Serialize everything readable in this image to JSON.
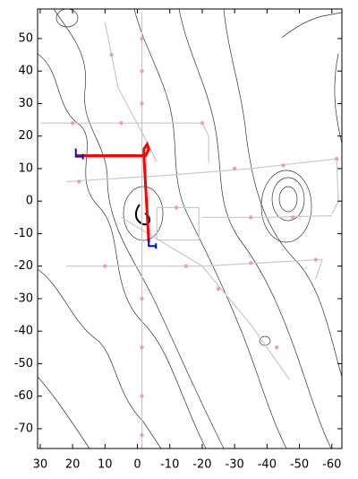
{
  "chart_data": {
    "type": "map",
    "xlim": [
      30.8,
      -63.1
    ],
    "ylim": [
      -76.1,
      59.1
    ],
    "xticks": [
      30,
      20,
      10,
      0,
      -10,
      -20,
      -30,
      -40,
      -50,
      -60
    ],
    "yticks": [
      50,
      40,
      30,
      20,
      10,
      0,
      -10,
      -20,
      -30,
      -40,
      -50,
      -60,
      -70
    ],
    "series": [
      {
        "mode": "line",
        "color": "#c8c8c8",
        "x": [
          -1.4,
          -1.4
        ],
        "y": [
          58,
          -76
        ]
      },
      {
        "mode": "line",
        "color": "#c8c8c8",
        "x": [
          30,
          5,
          -20,
          -22,
          -22
        ],
        "y": [
          24,
          24,
          24,
          20,
          12
        ]
      },
      {
        "mode": "line",
        "color": "#c8c8c8",
        "x": [
          22,
          -10,
          -35,
          -61.5,
          -62,
          -60
        ],
        "y": [
          6,
          8,
          10,
          13,
          0,
          -4
        ]
      },
      {
        "mode": "line",
        "color": "#c8c8c8",
        "x": [
          -20,
          -40,
          -60
        ],
        "y": [
          -5,
          -5,
          -4.5
        ]
      },
      {
        "mode": "line",
        "color": "#c8c8c8",
        "x": [
          22,
          -20,
          -57,
          -55
        ],
        "y": [
          -20,
          -20,
          -18,
          -24
        ]
      },
      {
        "mode": "line",
        "color": "#c8c8c8",
        "x": [
          5,
          -20,
          -35,
          -47
        ],
        "y": [
          -5,
          -20,
          -38,
          -55
        ]
      },
      {
        "mode": "line",
        "color": "#c8c8c8",
        "x": [
          10,
          6,
          -2,
          -6
        ],
        "y": [
          55,
          35,
          20,
          12
        ]
      },
      {
        "mode": "line",
        "color": "#c8c8c8",
        "x": [
          -6,
          -19,
          -19,
          -6,
          -6
        ],
        "y": [
          -2,
          -2,
          -12,
          -12,
          -2
        ]
      },
      {
        "mode": "points",
        "color": "#f4a0a0",
        "x": [
          -1.4,
          -1.4,
          -1.4,
          -1.4,
          -1.4,
          -1.4,
          -1.4,
          20,
          5,
          -20,
          18,
          -30,
          -45,
          -61.5,
          -35,
          -48,
          -55,
          10,
          -15,
          -35,
          -25,
          -43,
          8,
          -12
        ],
        "y": [
          50,
          40,
          30,
          -30,
          -45,
          -60,
          -72,
          24,
          24,
          24,
          6,
          10,
          11,
          13,
          -5,
          -5,
          -18,
          -20,
          -20,
          -19,
          -27,
          -45,
          45,
          -2
        ]
      },
      {
        "mode": "line",
        "color": "#ff0000",
        "x": [
          19,
          10,
          0,
          -2.5,
          -3.5,
          -3.0,
          -2.0,
          -2.0,
          -3.5
        ],
        "y": [
          14,
          14,
          14,
          14,
          16,
          17.5,
          16,
          14,
          -12.6
        ]
      },
      {
        "mode": "marker",
        "color": "#0000ff",
        "x": [
          19,
          -3.5
        ],
        "y": [
          14.5,
          -13
        ]
      }
    ]
  }
}
